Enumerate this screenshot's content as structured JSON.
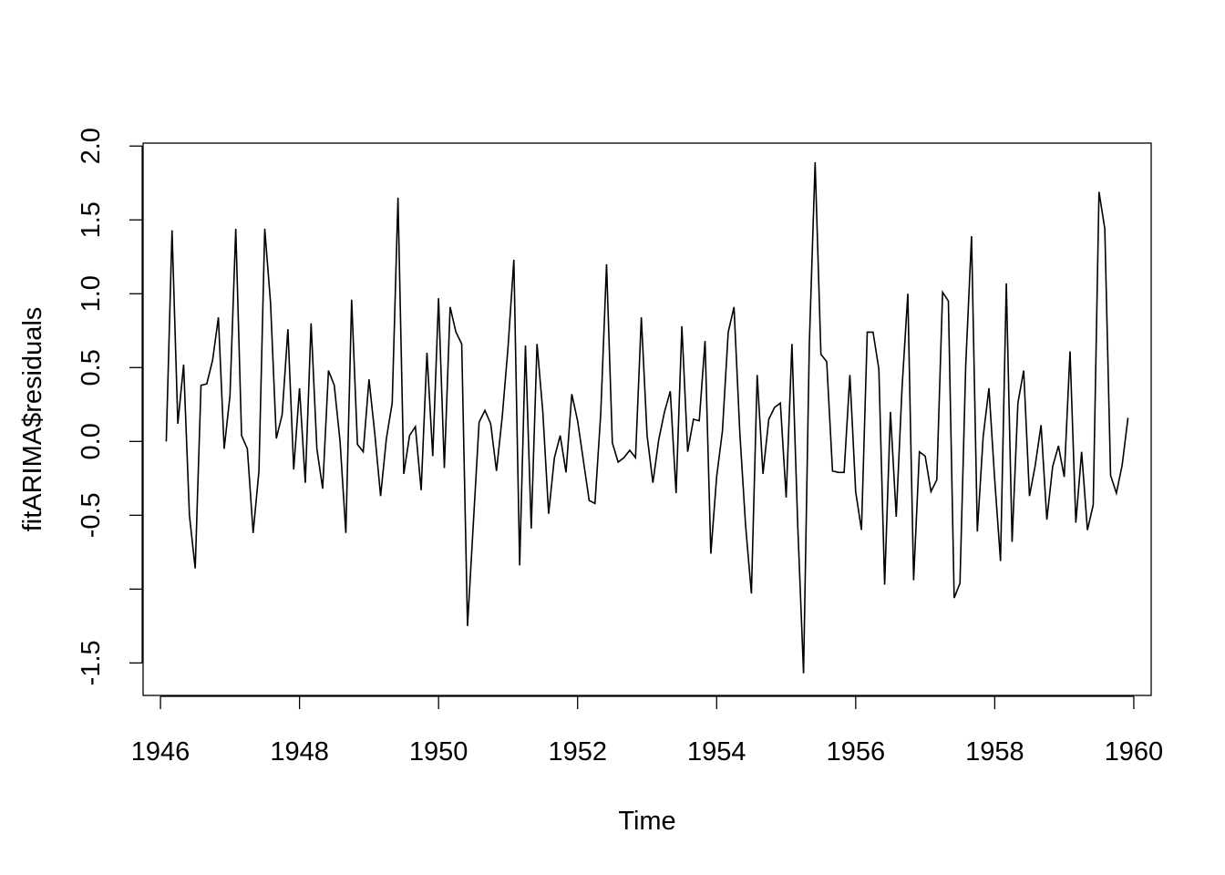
{
  "chart_data": {
    "type": "line",
    "title": "",
    "xlabel": "Time",
    "ylabel": "fitARIMA$residuals",
    "xlim": [
      1945.75,
      1960.25
    ],
    "ylim": [
      -1.72,
      2.02
    ],
    "x_ticks": [
      1946,
      1948,
      1950,
      1952,
      1954,
      1956,
      1958,
      1960
    ],
    "x_tick_labels": [
      "1946",
      "1948",
      "1950",
      "1952",
      "1954",
      "1956",
      "1958",
      "1960"
    ],
    "y_ticks": [
      -1.5,
      -1.0,
      -0.5,
      0.0,
      0.5,
      1.0,
      1.5,
      2.0
    ],
    "y_tick_labels": [
      "-1.5",
      "",
      "-0.5",
      "0.0",
      "0.5",
      "1.0",
      "1.5",
      "2.0"
    ],
    "grid": false,
    "legend": false,
    "start": 1946.083,
    "frequency": 12,
    "series": [
      {
        "values": [
          0.0,
          1.43,
          0.12,
          0.52,
          -0.5,
          -0.86,
          0.38,
          0.39,
          0.55,
          0.84,
          -0.05,
          0.31,
          1.44,
          0.04,
          -0.05,
          -0.62,
          -0.2,
          1.44,
          0.94,
          0.02,
          0.18,
          0.76,
          -0.19,
          0.36,
          -0.28,
          0.8,
          -0.05,
          -0.32,
          0.48,
          0.38,
          0.0,
          -0.62,
          0.96,
          -0.02,
          -0.07,
          0.42,
          0.05,
          -0.37,
          0.02,
          0.26,
          1.65,
          -0.22,
          0.04,
          0.1,
          -0.33,
          0.6,
          -0.1,
          0.97,
          -0.18,
          0.91,
          0.74,
          0.66,
          -1.25,
          -0.56,
          0.13,
          0.21,
          0.12,
          -0.2,
          0.17,
          0.64,
          1.23,
          -0.84,
          0.65,
          -0.59,
          0.66,
          0.2,
          -0.49,
          -0.11,
          0.04,
          -0.21,
          0.32,
          0.14,
          -0.13,
          -0.4,
          -0.42,
          0.19,
          1.2,
          -0.01,
          -0.14,
          -0.11,
          -0.06,
          -0.11,
          0.84,
          0.04,
          -0.28,
          0.01,
          0.2,
          0.34,
          -0.35,
          0.78,
          -0.07,
          0.15,
          0.14,
          0.68,
          -0.76,
          -0.24,
          0.07,
          0.74,
          0.91,
          0.06,
          -0.57,
          -1.03,
          0.45,
          -0.22,
          0.15,
          0.23,
          0.26,
          -0.38,
          0.66,
          -0.57,
          -1.57,
          0.66,
          1.89,
          0.59,
          0.54,
          -0.2,
          -0.21,
          -0.21,
          0.45,
          -0.34,
          -0.6,
          0.74,
          0.74,
          0.49,
          -0.97,
          0.2,
          -0.51,
          0.36,
          1.0,
          -0.94,
          -0.07,
          -0.1,
          -0.34,
          -0.26,
          1.01,
          0.95,
          -1.06,
          -0.96,
          0.52,
          1.39,
          -0.61,
          0.03,
          0.36,
          -0.26,
          -0.81,
          1.07,
          -0.68,
          0.26,
          0.48,
          -0.37,
          -0.16,
          0.11,
          -0.53,
          -0.17,
          -0.03,
          -0.24,
          0.61,
          -0.55,
          -0.07,
          -0.6,
          -0.43,
          1.69,
          1.44,
          -0.23,
          -0.35,
          -0.16,
          0.16
        ]
      }
    ]
  }
}
